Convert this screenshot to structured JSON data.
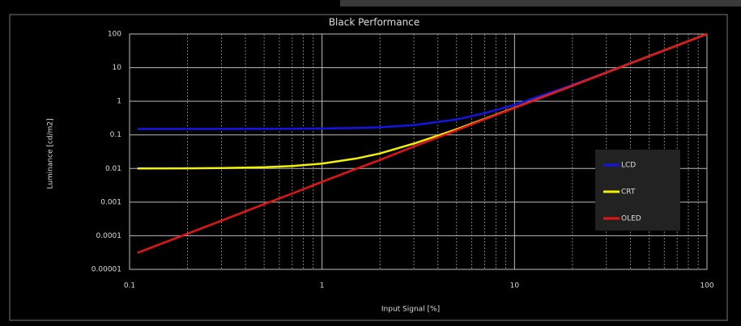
{
  "chart_data": {
    "type": "line",
    "title": "Black Performance",
    "x_label": "Input Signal [%]",
    "y_label": "Luminance [cd/m2]",
    "x": [
      0.11,
      0.2,
      0.3,
      0.5,
      0.7,
      1,
      1.5,
      2,
      3,
      5,
      7,
      10,
      20,
      30,
      50,
      70,
      100
    ],
    "series": [
      {
        "name": "LCD",
        "color": "#1414e6",
        "values": [
          0.15,
          0.15,
          0.15,
          0.151,
          0.152,
          0.154,
          0.16,
          0.168,
          0.195,
          0.287,
          0.44,
          0.78,
          3.05,
          7.25,
          22,
          45.8,
          100
        ]
      },
      {
        "name": "CRT",
        "color": "#f2f200",
        "values": [
          0.01,
          0.0101,
          0.0103,
          0.0109,
          0.0118,
          0.014,
          0.0197,
          0.028,
          0.055,
          0.147,
          0.3,
          0.64,
          2.9,
          7.1,
          21.8,
          45.6,
          100
        ]
      },
      {
        "name": "OLED",
        "color": "#e61414",
        "values": [
          3.1e-05,
          0.000115,
          0.00028,
          0.00087,
          0.0018,
          0.004,
          0.0097,
          0.018,
          0.045,
          0.137,
          0.29,
          0.63,
          2.9,
          7.1,
          21.8,
          45.6,
          100
        ]
      }
    ],
    "xlim": [
      0.1,
      100
    ],
    "ylim": [
      1e-05,
      100
    ],
    "xticks": [
      0.1,
      1,
      10,
      100
    ],
    "yticks": [
      100,
      10,
      1,
      0.1,
      0.01,
      0.001,
      0.0001,
      1e-05
    ],
    "x_log": true,
    "y_log": true,
    "grid": true,
    "legend": "right"
  }
}
